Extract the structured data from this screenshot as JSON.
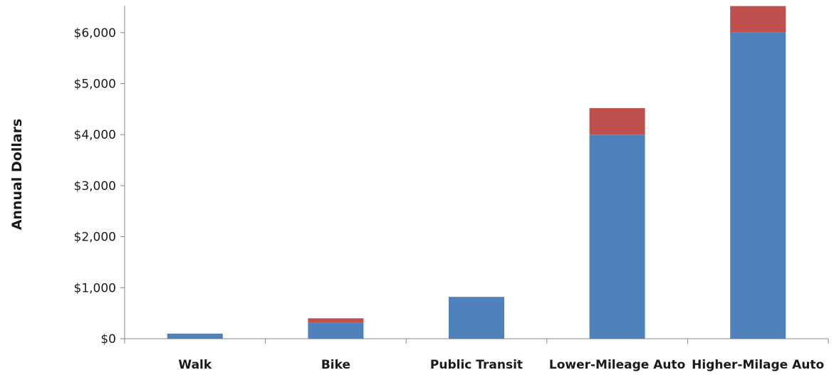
{
  "chart_data": {
    "type": "bar",
    "stacked": true,
    "categories": [
      "Walk",
      "Bike",
      "Public Transit",
      "Lower-Mileage Auto",
      "Higher-Milage Auto"
    ],
    "series": [
      {
        "values": [
          100,
          310,
          820,
          4000,
          6000
        ],
        "color": "#4f81bd"
      },
      {
        "values": [
          0,
          90,
          0,
          520,
          520
        ],
        "color": "#c0504d"
      }
    ],
    "title": "",
    "xlabel": "",
    "ylabel": "Annual Dollars",
    "ylim": [
      0,
      6500
    ],
    "yticks": [
      0,
      1000,
      2000,
      3000,
      4000,
      5000,
      6000
    ],
    "ytick_labels": [
      "$0",
      "$1,000",
      "$2,000",
      "$3,000",
      "$4,000",
      "$5,000",
      "$6,000"
    ],
    "grid": false,
    "legend": "none"
  }
}
